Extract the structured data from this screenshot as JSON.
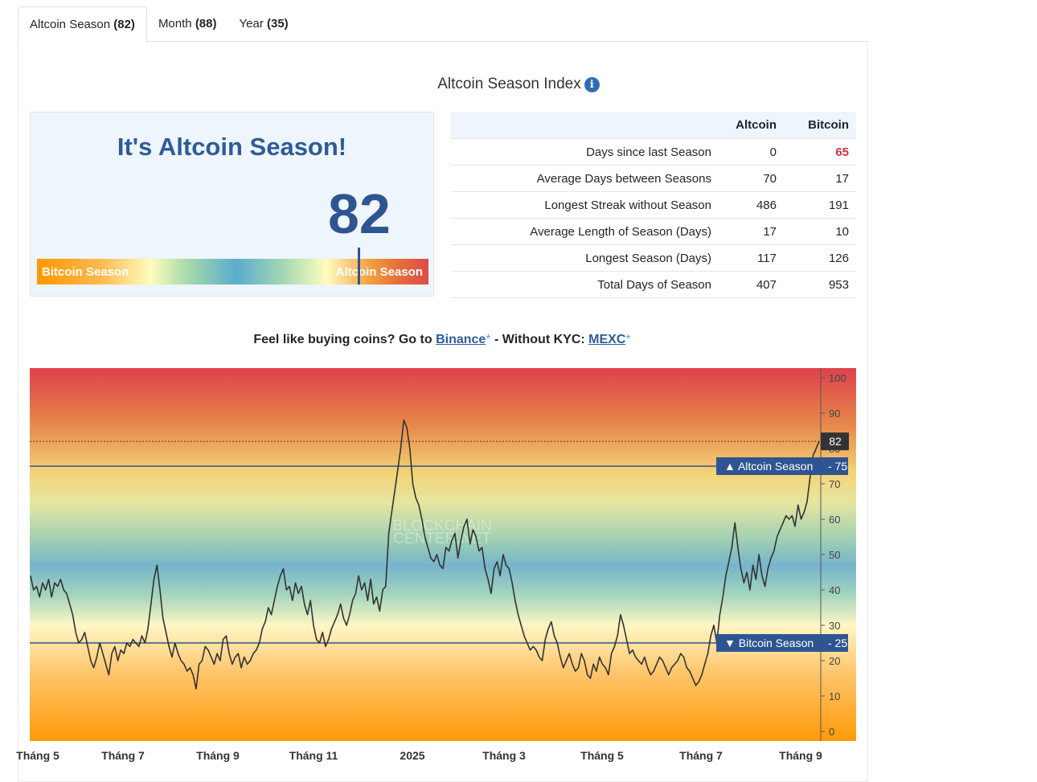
{
  "tabs": [
    {
      "label": "Altcoin Season",
      "count": "(82)"
    },
    {
      "label": "Month",
      "count": "(88)"
    },
    {
      "label": "Year",
      "count": "(35)"
    }
  ],
  "index_title": "Altcoin Season Index",
  "info_glyph": "i",
  "gauge": {
    "headline": "It's Altcoin Season!",
    "value": "82",
    "level": 82,
    "left_label": "Bitcoin Season",
    "right_label": "Altcoin Season"
  },
  "stats": {
    "headers": [
      "",
      "Altcoin",
      "Bitcoin"
    ],
    "rows": [
      {
        "label": "Days since last Season",
        "altcoin": "0",
        "bitcoin": "65"
      },
      {
        "label": "Average Days between Seasons",
        "altcoin": "70",
        "bitcoin": "17"
      },
      {
        "label": "Longest Streak without Season",
        "altcoin": "486",
        "bitcoin": "191"
      },
      {
        "label": "Average Length of Season (Days)",
        "altcoin": "17",
        "bitcoin": "10"
      },
      {
        "label": "Longest Season (Days)",
        "altcoin": "117",
        "bitcoin": "126"
      },
      {
        "label": "Total Days of Season",
        "altcoin": "407",
        "bitcoin": "953"
      }
    ]
  },
  "promo": {
    "prefix": "Feel like buying coins? Go to ",
    "link1": "Binance",
    "star": "*",
    "middle": " - Without KYC: ",
    "link2": "MEXC"
  },
  "colors": {
    "accent": "#2e5591",
    "altcoin_red": "#de4a4a",
    "bitcoin_orange": "#ff9800",
    "table_highlight": "#d9303b"
  },
  "chart_data": {
    "type": "line",
    "watermark": [
      "BLOCKCHAIN",
      "CENTER.NET"
    ],
    "ylim": [
      0,
      100
    ],
    "y_ticks": [
      "0",
      "10",
      "20",
      "30",
      "40",
      "50",
      "60",
      "70",
      "80",
      "90",
      "100"
    ],
    "x_ticks": [
      "Tháng 5",
      "Tháng 7",
      "Tháng 9",
      "Tháng 11",
      "2025",
      "Tháng 3",
      "Tháng 5",
      "Tháng 7",
      "Tháng 9"
    ],
    "thresholds": [
      {
        "label": "▲ Altcoin Season",
        "value": 75
      },
      {
        "label": "▼ Bitcoin Season",
        "value": 25
      }
    ],
    "current": {
      "label": "82",
      "value": 82
    },
    "series": [
      {
        "values": [
          44,
          40,
          41,
          38,
          42,
          40,
          43,
          38,
          42,
          41,
          43,
          40,
          39,
          36,
          33,
          28,
          25,
          26,
          28,
          24,
          20,
          18,
          21,
          25,
          22,
          19,
          16,
          22,
          24,
          20,
          23,
          22,
          25,
          24,
          26,
          25,
          24,
          27,
          25,
          29,
          36,
          43,
          47,
          40,
          32,
          28,
          24,
          21,
          25,
          22,
          20,
          19,
          17,
          18,
          16,
          12,
          19,
          20,
          24,
          23,
          21,
          19,
          22,
          20,
          26,
          27,
          22,
          19,
          21,
          22,
          18,
          21,
          19,
          20,
          22,
          23,
          25,
          29,
          31,
          35,
          33,
          37,
          41,
          44,
          46,
          40,
          41,
          37,
          42,
          39,
          41,
          36,
          33,
          37,
          30,
          26,
          25,
          28,
          24,
          26,
          29,
          31,
          33,
          36,
          32,
          30,
          33,
          37,
          39,
          44,
          40,
          42,
          37,
          43,
          36,
          38,
          34,
          40,
          41,
          56,
          62,
          68,
          74,
          80,
          88,
          86,
          80,
          70,
          66,
          64,
          60,
          55,
          52,
          49,
          48,
          50,
          47,
          46,
          52,
          51,
          54,
          56,
          49,
          54,
          58,
          60,
          53,
          57,
          55,
          51,
          52,
          46,
          43,
          39,
          46,
          48,
          44,
          50,
          47,
          46,
          42,
          37,
          33,
          30,
          27,
          25,
          23,
          24,
          23,
          21,
          20,
          26,
          29,
          31,
          27,
          25,
          21,
          18,
          20,
          22,
          19,
          17,
          18,
          22,
          20,
          16,
          15,
          19,
          17,
          21,
          19,
          18,
          16,
          22,
          24,
          27,
          33,
          30,
          26,
          22,
          23,
          21,
          20,
          19,
          21,
          18,
          16,
          17,
          19,
          21,
          20,
          18,
          16,
          18,
          19,
          20,
          22,
          21,
          18,
          17,
          15,
          13,
          14,
          16,
          19,
          22,
          27,
          30,
          25,
          33,
          38,
          44,
          48,
          52,
          59,
          52,
          46,
          42,
          45,
          40,
          47,
          43,
          50,
          44,
          41,
          46,
          49,
          51,
          55,
          57,
          59,
          61,
          60,
          61,
          58,
          64,
          60,
          62,
          65,
          72,
          78,
          80,
          82
        ],
        "line_color": "#333333"
      }
    ],
    "xlabel": "",
    "ylabel": ""
  }
}
